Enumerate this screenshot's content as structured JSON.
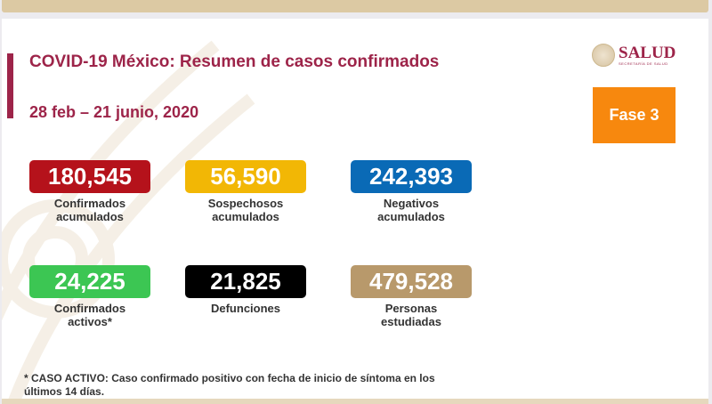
{
  "header": {
    "title": "COVID-19 México: Resumen de casos confirmados",
    "date_range": "28 feb – 21 junio, 2020",
    "logo_text": "SALUD",
    "logo_subtext": "SECRETARÍA DE SALUD",
    "phase": "Fase 3"
  },
  "stats": [
    {
      "value": "180,545",
      "label1": "Confirmados",
      "label2": "acumulados",
      "color": "#b5121b"
    },
    {
      "value": "56,590",
      "label1": "Sospechosos",
      "label2": "acumulados",
      "color": "#f2b705"
    },
    {
      "value": "242,393",
      "label1": "Negativos",
      "label2": "acumulados",
      "color": "#0a6ab6"
    },
    {
      "value": "24,225",
      "label1": "Confirmados",
      "label2": "activos*",
      "color": "#3cc653"
    },
    {
      "value": "21,825",
      "label1": "Defunciones",
      "label2": "",
      "color": "#000000"
    },
    {
      "value": "479,528",
      "label1": "Personas",
      "label2": "estudiadas",
      "color": "#b8996b"
    }
  ],
  "footnote": {
    "line1": "* CASO ACTIVO: Caso confirmado positivo con fecha de inicio de síntoma en los",
    "line2": "últimos 14 días."
  }
}
